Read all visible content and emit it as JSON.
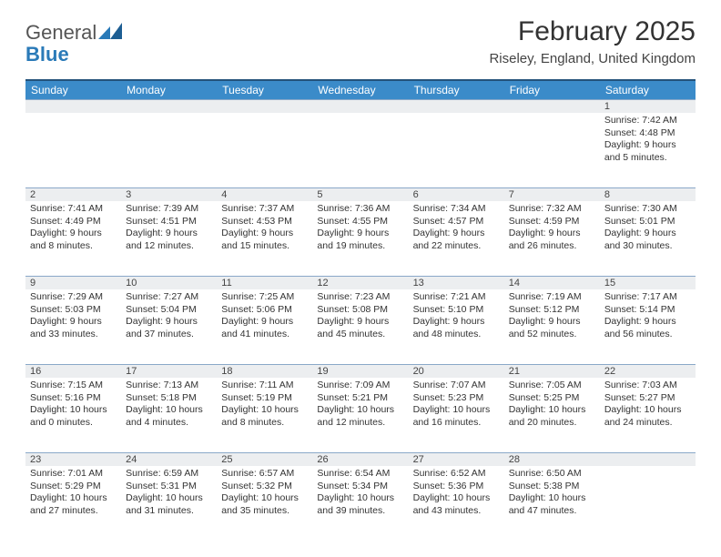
{
  "logo": {
    "word1": "General",
    "word2": "Blue"
  },
  "title": "February 2025",
  "location": "Riseley, England, United Kingdom",
  "colors": {
    "header_bar": "#3b8bc9",
    "header_top_border": "#24527a",
    "daynum_bg": "#eceef0",
    "row_divider": "#8aa8c8",
    "logo_blue": "#2a7ab8"
  },
  "weekdays": [
    "Sunday",
    "Monday",
    "Tuesday",
    "Wednesday",
    "Thursday",
    "Friday",
    "Saturday"
  ],
  "weeks": [
    [
      {
        "n": "",
        "sunrise": "",
        "sunset": "",
        "daylight": ""
      },
      {
        "n": "",
        "sunrise": "",
        "sunset": "",
        "daylight": ""
      },
      {
        "n": "",
        "sunrise": "",
        "sunset": "",
        "daylight": ""
      },
      {
        "n": "",
        "sunrise": "",
        "sunset": "",
        "daylight": ""
      },
      {
        "n": "",
        "sunrise": "",
        "sunset": "",
        "daylight": ""
      },
      {
        "n": "",
        "sunrise": "",
        "sunset": "",
        "daylight": ""
      },
      {
        "n": "1",
        "sunrise": "Sunrise: 7:42 AM",
        "sunset": "Sunset: 4:48 PM",
        "daylight": "Daylight: 9 hours and 5 minutes."
      }
    ],
    [
      {
        "n": "2",
        "sunrise": "Sunrise: 7:41 AM",
        "sunset": "Sunset: 4:49 PM",
        "daylight": "Daylight: 9 hours and 8 minutes."
      },
      {
        "n": "3",
        "sunrise": "Sunrise: 7:39 AM",
        "sunset": "Sunset: 4:51 PM",
        "daylight": "Daylight: 9 hours and 12 minutes."
      },
      {
        "n": "4",
        "sunrise": "Sunrise: 7:37 AM",
        "sunset": "Sunset: 4:53 PM",
        "daylight": "Daylight: 9 hours and 15 minutes."
      },
      {
        "n": "5",
        "sunrise": "Sunrise: 7:36 AM",
        "sunset": "Sunset: 4:55 PM",
        "daylight": "Daylight: 9 hours and 19 minutes."
      },
      {
        "n": "6",
        "sunrise": "Sunrise: 7:34 AM",
        "sunset": "Sunset: 4:57 PM",
        "daylight": "Daylight: 9 hours and 22 minutes."
      },
      {
        "n": "7",
        "sunrise": "Sunrise: 7:32 AM",
        "sunset": "Sunset: 4:59 PM",
        "daylight": "Daylight: 9 hours and 26 minutes."
      },
      {
        "n": "8",
        "sunrise": "Sunrise: 7:30 AM",
        "sunset": "Sunset: 5:01 PM",
        "daylight": "Daylight: 9 hours and 30 minutes."
      }
    ],
    [
      {
        "n": "9",
        "sunrise": "Sunrise: 7:29 AM",
        "sunset": "Sunset: 5:03 PM",
        "daylight": "Daylight: 9 hours and 33 minutes."
      },
      {
        "n": "10",
        "sunrise": "Sunrise: 7:27 AM",
        "sunset": "Sunset: 5:04 PM",
        "daylight": "Daylight: 9 hours and 37 minutes."
      },
      {
        "n": "11",
        "sunrise": "Sunrise: 7:25 AM",
        "sunset": "Sunset: 5:06 PM",
        "daylight": "Daylight: 9 hours and 41 minutes."
      },
      {
        "n": "12",
        "sunrise": "Sunrise: 7:23 AM",
        "sunset": "Sunset: 5:08 PM",
        "daylight": "Daylight: 9 hours and 45 minutes."
      },
      {
        "n": "13",
        "sunrise": "Sunrise: 7:21 AM",
        "sunset": "Sunset: 5:10 PM",
        "daylight": "Daylight: 9 hours and 48 minutes."
      },
      {
        "n": "14",
        "sunrise": "Sunrise: 7:19 AM",
        "sunset": "Sunset: 5:12 PM",
        "daylight": "Daylight: 9 hours and 52 minutes."
      },
      {
        "n": "15",
        "sunrise": "Sunrise: 7:17 AM",
        "sunset": "Sunset: 5:14 PM",
        "daylight": "Daylight: 9 hours and 56 minutes."
      }
    ],
    [
      {
        "n": "16",
        "sunrise": "Sunrise: 7:15 AM",
        "sunset": "Sunset: 5:16 PM",
        "daylight": "Daylight: 10 hours and 0 minutes."
      },
      {
        "n": "17",
        "sunrise": "Sunrise: 7:13 AM",
        "sunset": "Sunset: 5:18 PM",
        "daylight": "Daylight: 10 hours and 4 minutes."
      },
      {
        "n": "18",
        "sunrise": "Sunrise: 7:11 AM",
        "sunset": "Sunset: 5:19 PM",
        "daylight": "Daylight: 10 hours and 8 minutes."
      },
      {
        "n": "19",
        "sunrise": "Sunrise: 7:09 AM",
        "sunset": "Sunset: 5:21 PM",
        "daylight": "Daylight: 10 hours and 12 minutes."
      },
      {
        "n": "20",
        "sunrise": "Sunrise: 7:07 AM",
        "sunset": "Sunset: 5:23 PM",
        "daylight": "Daylight: 10 hours and 16 minutes."
      },
      {
        "n": "21",
        "sunrise": "Sunrise: 7:05 AM",
        "sunset": "Sunset: 5:25 PM",
        "daylight": "Daylight: 10 hours and 20 minutes."
      },
      {
        "n": "22",
        "sunrise": "Sunrise: 7:03 AM",
        "sunset": "Sunset: 5:27 PM",
        "daylight": "Daylight: 10 hours and 24 minutes."
      }
    ],
    [
      {
        "n": "23",
        "sunrise": "Sunrise: 7:01 AM",
        "sunset": "Sunset: 5:29 PM",
        "daylight": "Daylight: 10 hours and 27 minutes."
      },
      {
        "n": "24",
        "sunrise": "Sunrise: 6:59 AM",
        "sunset": "Sunset: 5:31 PM",
        "daylight": "Daylight: 10 hours and 31 minutes."
      },
      {
        "n": "25",
        "sunrise": "Sunrise: 6:57 AM",
        "sunset": "Sunset: 5:32 PM",
        "daylight": "Daylight: 10 hours and 35 minutes."
      },
      {
        "n": "26",
        "sunrise": "Sunrise: 6:54 AM",
        "sunset": "Sunset: 5:34 PM",
        "daylight": "Daylight: 10 hours and 39 minutes."
      },
      {
        "n": "27",
        "sunrise": "Sunrise: 6:52 AM",
        "sunset": "Sunset: 5:36 PM",
        "daylight": "Daylight: 10 hours and 43 minutes."
      },
      {
        "n": "28",
        "sunrise": "Sunrise: 6:50 AM",
        "sunset": "Sunset: 5:38 PM",
        "daylight": "Daylight: 10 hours and 47 minutes."
      },
      {
        "n": "",
        "sunrise": "",
        "sunset": "",
        "daylight": ""
      }
    ]
  ]
}
